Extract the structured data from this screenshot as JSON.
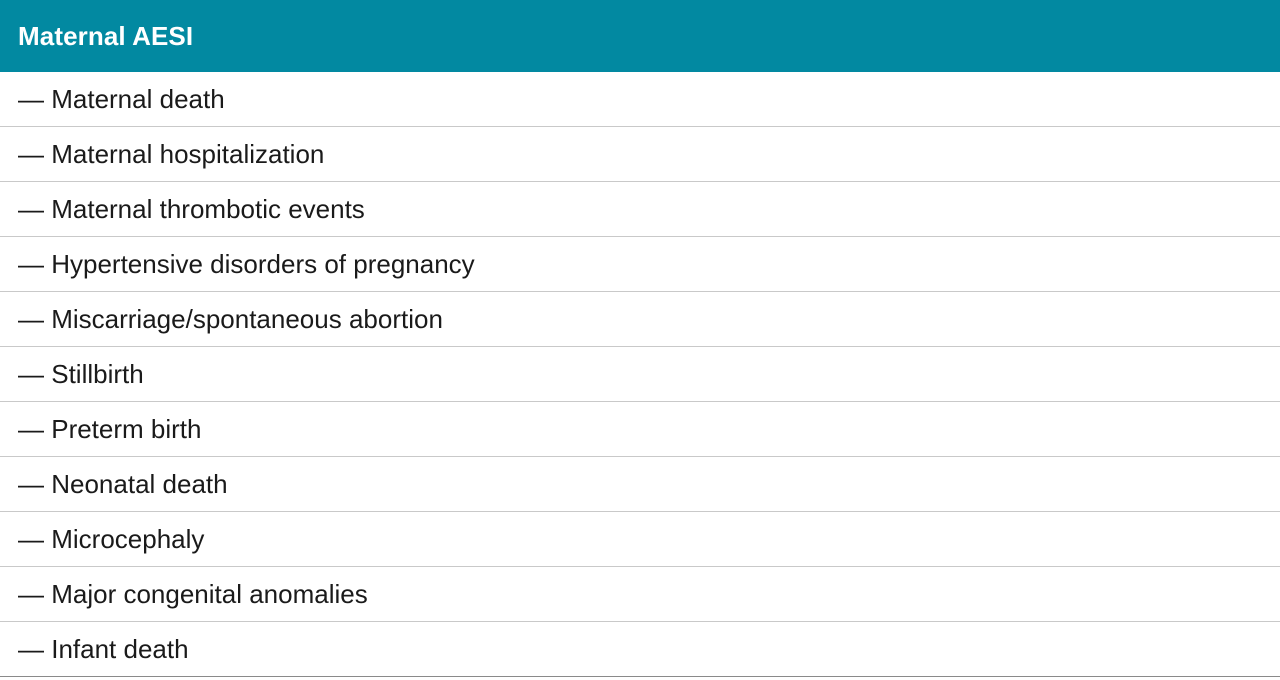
{
  "table": {
    "header": "Maternal AESI",
    "header_color": "#0289a1",
    "rows": [
      "— Maternal death",
      "— Maternal hospitalization",
      "— Maternal thrombotic events",
      "— Hypertensive disorders of pregnancy",
      "— Miscarriage/spontaneous abortion",
      "— Stillbirth",
      "— Preterm birth",
      "— Neonatal death",
      "— Microcephaly",
      "— Major congenital anomalies",
      "— Infant death"
    ]
  }
}
